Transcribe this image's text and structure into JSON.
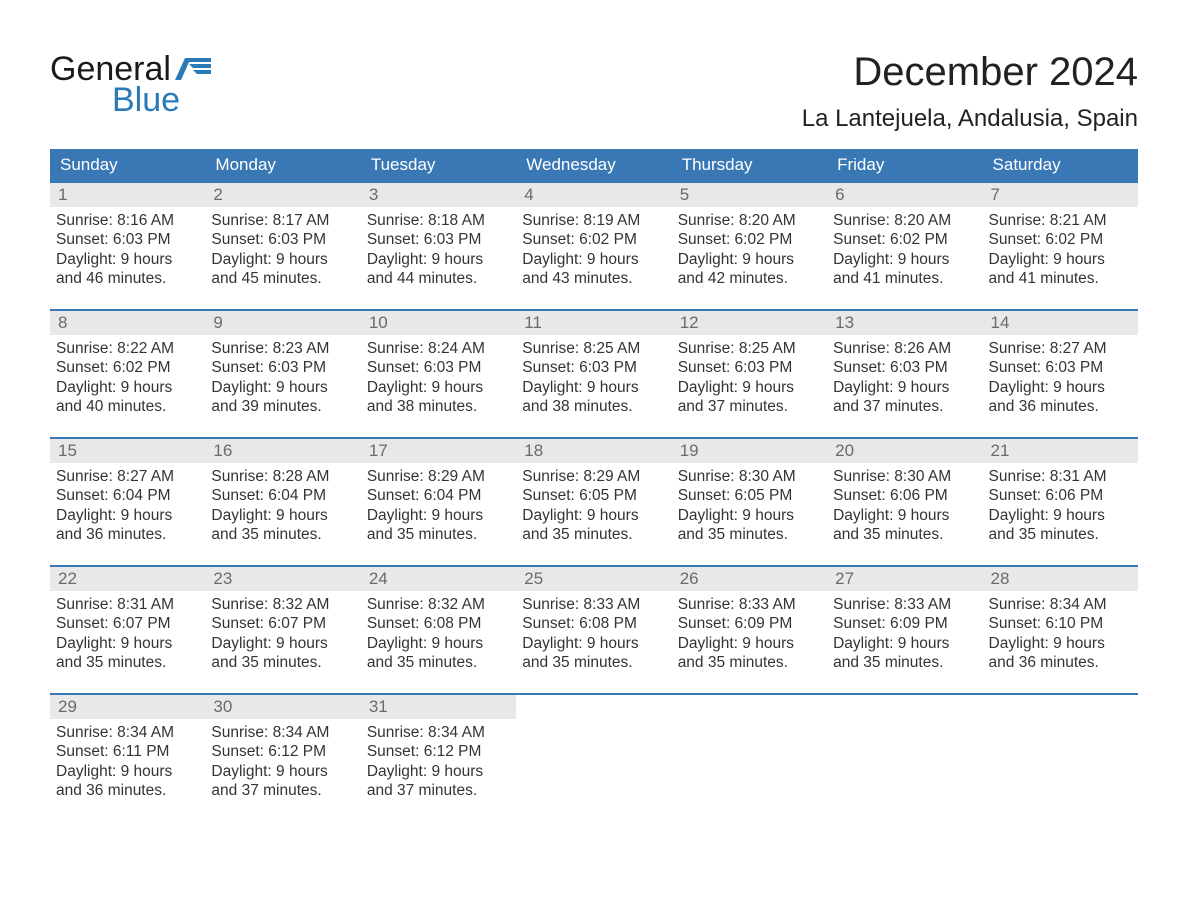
{
  "logo": {
    "general": "General",
    "blue": "Blue"
  },
  "header": {
    "month_title": "December 2024",
    "location": "La Lantejuela, Andalusia, Spain"
  },
  "colors": {
    "header_bg": "#3a78b5",
    "header_text": "#ffffff",
    "daynum_bg": "#e8e8e8",
    "daynum_text": "#6b6b6b",
    "body_text": "#343434",
    "logo_blue": "#2a7ab8",
    "page_bg": "#ffffff",
    "week_border": "#3a78b5"
  },
  "typography": {
    "month_title_fontsize": 40,
    "location_fontsize": 24,
    "weekday_fontsize": 17,
    "daynum_fontsize": 17,
    "body_fontsize": 15.5,
    "logo_fontsize": 34
  },
  "weekdays": [
    "Sunday",
    "Monday",
    "Tuesday",
    "Wednesday",
    "Thursday",
    "Friday",
    "Saturday"
  ],
  "weeks": [
    [
      {
        "n": "1",
        "sunrise": "Sunrise: 8:16 AM",
        "sunset": "Sunset: 6:03 PM",
        "d1": "Daylight: 9 hours",
        "d2": "and 46 minutes."
      },
      {
        "n": "2",
        "sunrise": "Sunrise: 8:17 AM",
        "sunset": "Sunset: 6:03 PM",
        "d1": "Daylight: 9 hours",
        "d2": "and 45 minutes."
      },
      {
        "n": "3",
        "sunrise": "Sunrise: 8:18 AM",
        "sunset": "Sunset: 6:03 PM",
        "d1": "Daylight: 9 hours",
        "d2": "and 44 minutes."
      },
      {
        "n": "4",
        "sunrise": "Sunrise: 8:19 AM",
        "sunset": "Sunset: 6:02 PM",
        "d1": "Daylight: 9 hours",
        "d2": "and 43 minutes."
      },
      {
        "n": "5",
        "sunrise": "Sunrise: 8:20 AM",
        "sunset": "Sunset: 6:02 PM",
        "d1": "Daylight: 9 hours",
        "d2": "and 42 minutes."
      },
      {
        "n": "6",
        "sunrise": "Sunrise: 8:20 AM",
        "sunset": "Sunset: 6:02 PM",
        "d1": "Daylight: 9 hours",
        "d2": "and 41 minutes."
      },
      {
        "n": "7",
        "sunrise": "Sunrise: 8:21 AM",
        "sunset": "Sunset: 6:02 PM",
        "d1": "Daylight: 9 hours",
        "d2": "and 41 minutes."
      }
    ],
    [
      {
        "n": "8",
        "sunrise": "Sunrise: 8:22 AM",
        "sunset": "Sunset: 6:02 PM",
        "d1": "Daylight: 9 hours",
        "d2": "and 40 minutes."
      },
      {
        "n": "9",
        "sunrise": "Sunrise: 8:23 AM",
        "sunset": "Sunset: 6:03 PM",
        "d1": "Daylight: 9 hours",
        "d2": "and 39 minutes."
      },
      {
        "n": "10",
        "sunrise": "Sunrise: 8:24 AM",
        "sunset": "Sunset: 6:03 PM",
        "d1": "Daylight: 9 hours",
        "d2": "and 38 minutes."
      },
      {
        "n": "11",
        "sunrise": "Sunrise: 8:25 AM",
        "sunset": "Sunset: 6:03 PM",
        "d1": "Daylight: 9 hours",
        "d2": "and 38 minutes."
      },
      {
        "n": "12",
        "sunrise": "Sunrise: 8:25 AM",
        "sunset": "Sunset: 6:03 PM",
        "d1": "Daylight: 9 hours",
        "d2": "and 37 minutes."
      },
      {
        "n": "13",
        "sunrise": "Sunrise: 8:26 AM",
        "sunset": "Sunset: 6:03 PM",
        "d1": "Daylight: 9 hours",
        "d2": "and 37 minutes."
      },
      {
        "n": "14",
        "sunrise": "Sunrise: 8:27 AM",
        "sunset": "Sunset: 6:03 PM",
        "d1": "Daylight: 9 hours",
        "d2": "and 36 minutes."
      }
    ],
    [
      {
        "n": "15",
        "sunrise": "Sunrise: 8:27 AM",
        "sunset": "Sunset: 6:04 PM",
        "d1": "Daylight: 9 hours",
        "d2": "and 36 minutes."
      },
      {
        "n": "16",
        "sunrise": "Sunrise: 8:28 AM",
        "sunset": "Sunset: 6:04 PM",
        "d1": "Daylight: 9 hours",
        "d2": "and 35 minutes."
      },
      {
        "n": "17",
        "sunrise": "Sunrise: 8:29 AM",
        "sunset": "Sunset: 6:04 PM",
        "d1": "Daylight: 9 hours",
        "d2": "and 35 minutes."
      },
      {
        "n": "18",
        "sunrise": "Sunrise: 8:29 AM",
        "sunset": "Sunset: 6:05 PM",
        "d1": "Daylight: 9 hours",
        "d2": "and 35 minutes."
      },
      {
        "n": "19",
        "sunrise": "Sunrise: 8:30 AM",
        "sunset": "Sunset: 6:05 PM",
        "d1": "Daylight: 9 hours",
        "d2": "and 35 minutes."
      },
      {
        "n": "20",
        "sunrise": "Sunrise: 8:30 AM",
        "sunset": "Sunset: 6:06 PM",
        "d1": "Daylight: 9 hours",
        "d2": "and 35 minutes."
      },
      {
        "n": "21",
        "sunrise": "Sunrise: 8:31 AM",
        "sunset": "Sunset: 6:06 PM",
        "d1": "Daylight: 9 hours",
        "d2": "and 35 minutes."
      }
    ],
    [
      {
        "n": "22",
        "sunrise": "Sunrise: 8:31 AM",
        "sunset": "Sunset: 6:07 PM",
        "d1": "Daylight: 9 hours",
        "d2": "and 35 minutes."
      },
      {
        "n": "23",
        "sunrise": "Sunrise: 8:32 AM",
        "sunset": "Sunset: 6:07 PM",
        "d1": "Daylight: 9 hours",
        "d2": "and 35 minutes."
      },
      {
        "n": "24",
        "sunrise": "Sunrise: 8:32 AM",
        "sunset": "Sunset: 6:08 PM",
        "d1": "Daylight: 9 hours",
        "d2": "and 35 minutes."
      },
      {
        "n": "25",
        "sunrise": "Sunrise: 8:33 AM",
        "sunset": "Sunset: 6:08 PM",
        "d1": "Daylight: 9 hours",
        "d2": "and 35 minutes."
      },
      {
        "n": "26",
        "sunrise": "Sunrise: 8:33 AM",
        "sunset": "Sunset: 6:09 PM",
        "d1": "Daylight: 9 hours",
        "d2": "and 35 minutes."
      },
      {
        "n": "27",
        "sunrise": "Sunrise: 8:33 AM",
        "sunset": "Sunset: 6:09 PM",
        "d1": "Daylight: 9 hours",
        "d2": "and 35 minutes."
      },
      {
        "n": "28",
        "sunrise": "Sunrise: 8:34 AM",
        "sunset": "Sunset: 6:10 PM",
        "d1": "Daylight: 9 hours",
        "d2": "and 36 minutes."
      }
    ],
    [
      {
        "n": "29",
        "sunrise": "Sunrise: 8:34 AM",
        "sunset": "Sunset: 6:11 PM",
        "d1": "Daylight: 9 hours",
        "d2": "and 36 minutes."
      },
      {
        "n": "30",
        "sunrise": "Sunrise: 8:34 AM",
        "sunset": "Sunset: 6:12 PM",
        "d1": "Daylight: 9 hours",
        "d2": "and 37 minutes."
      },
      {
        "n": "31",
        "sunrise": "Sunrise: 8:34 AM",
        "sunset": "Sunset: 6:12 PM",
        "d1": "Daylight: 9 hours",
        "d2": "and 37 minutes."
      },
      null,
      null,
      null,
      null
    ]
  ]
}
